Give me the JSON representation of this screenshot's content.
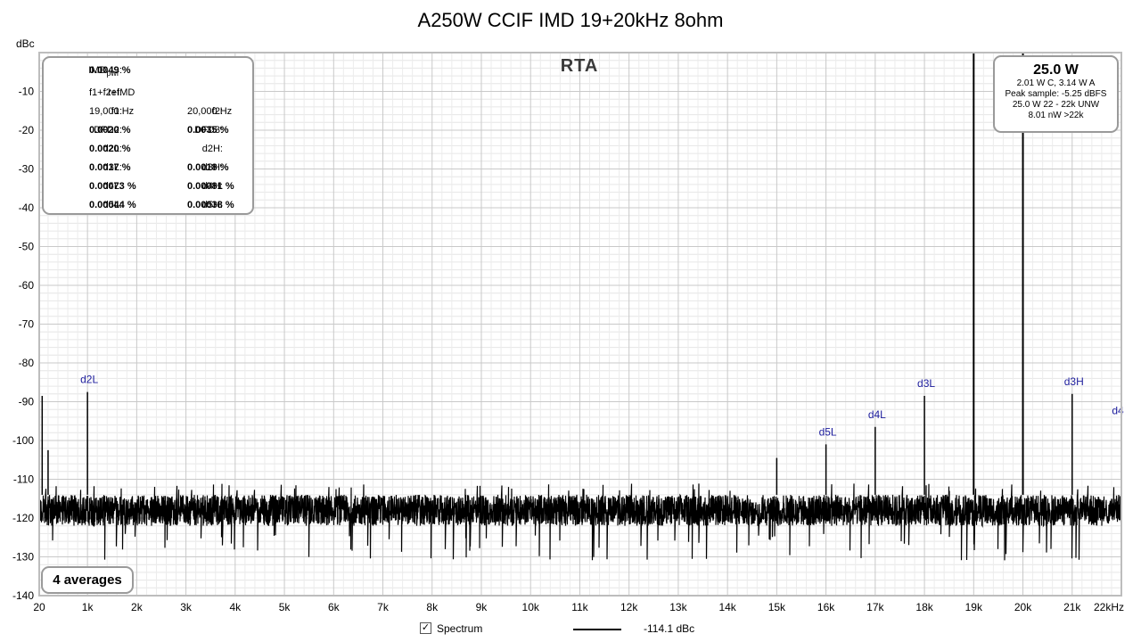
{
  "chart_data": {
    "type": "line",
    "title": "A250W CCIF IMD 19+20kHz 8ohm",
    "xlabel": "",
    "ylabel": "dBc",
    "x_unit": "Hz",
    "xlim": [
      20,
      22000
    ],
    "ylim": [
      -140,
      0
    ],
    "y_ticks": [
      -10,
      -20,
      -30,
      -40,
      -50,
      -60,
      -70,
      -80,
      -90,
      -100,
      -110,
      -120,
      -130,
      -140
    ],
    "y_tick_labels": [
      "-10",
      "-20",
      "-30",
      "-40",
      "-50",
      "-60",
      "-70",
      "-80",
      "-90",
      "-100",
      "-110",
      "-120",
      "-130",
      "-140"
    ],
    "x_ticks": [
      20,
      1000,
      2000,
      3000,
      4000,
      5000,
      6000,
      7000,
      8000,
      9000,
      10000,
      11000,
      12000,
      13000,
      14000,
      15000,
      16000,
      17000,
      18000,
      19000,
      20000,
      21000,
      22000
    ],
    "x_tick_labels": [
      "20",
      "1k",
      "2k",
      "3k",
      "4k",
      "5k",
      "6k",
      "7k",
      "8k",
      "9k",
      "10k",
      "11k",
      "12k",
      "13k",
      "14k",
      "15k",
      "16k",
      "17k",
      "18k",
      "19k",
      "20k",
      "21k",
      "22kHz"
    ],
    "grid": true,
    "noise_floor_dBc": -118,
    "series": [
      {
        "name": "Spectrum",
        "color": "#000000",
        "peaks": [
          {
            "x": 80,
            "y": -88.5
          },
          {
            "x": 200,
            "y": -102.5
          },
          {
            "x": 1000,
            "y": -87.5
          },
          {
            "x": 15000,
            "y": -104.5
          },
          {
            "x": 16000,
            "y": -101
          },
          {
            "x": 17000,
            "y": -96.5
          },
          {
            "x": 18000,
            "y": -88.5
          },
          {
            "x": 19000,
            "y": 0
          },
          {
            "x": 20000,
            "y": 0
          },
          {
            "x": 21000,
            "y": -88
          },
          {
            "x": 22000,
            "y": -95.5
          }
        ]
      }
    ],
    "annotations": [
      {
        "text": "d2L",
        "x": 1000,
        "y": -87.5
      },
      {
        "text": "d5L",
        "x": 16000,
        "y": -101
      },
      {
        "text": "d4L",
        "x": 17000,
        "y": -96.5
      },
      {
        "text": "d3L",
        "x": 18000,
        "y": -88.5
      },
      {
        "text": "d3H",
        "x": 21000,
        "y": -88
      },
      {
        "text": "d4",
        "x": 22000,
        "y": -95.5
      }
    ]
  },
  "imd_panel": {
    "imd_key": "IMD",
    "imd_sub": "pwr",
    "imd_colon": ":",
    "imd_value": "0.0049 %",
    "ref_key": "ref:",
    "ref_value": "f1+f2+IMD",
    "f1_key": "f1:",
    "f1_value": "19,000 Hz",
    "f2_key": "f2:",
    "f2_value": "20,000 Hz",
    "dfd2_key": "DFD2:",
    "dfd2_value": "0.0020 %",
    "dfd3_key": "DFD3:",
    "dfd3_value": "0.0035 %",
    "d2l_key": "d2L:",
    "d2l_value": "0.0020 %",
    "d2h_key": "d2H:",
    "d2h_value": "",
    "d3l_key": "d3L:",
    "d3l_value": "0.0017 %",
    "d3h_key": "d3H:",
    "d3h_value": "0.0018 %",
    "d4l_key": "d4L:",
    "d4l_value": "0.00073 %",
    "d4h_key": "d4H:",
    "d4h_value": "0.00081 %",
    "d5l_key": "d5L:",
    "d5l_value": "0.00044 %",
    "d5h_key": "d5H:",
    "d5h_value": "0.00038 %"
  },
  "rta_label": "RTA",
  "power_panel": {
    "main": "25.0 W",
    "line1": "2.01 W C, 3.14 W A",
    "line2": "Peak sample: -5.25 dBFS",
    "line3": "25.0 W 22 - 22k UNW",
    "line4": "8.01 nW >22k"
  },
  "averages_label": "4 averages",
  "legend": {
    "checkbox_mark": "✓",
    "name": "Spectrum",
    "value": "-114.1 dBc",
    "line_color": "#000000"
  }
}
